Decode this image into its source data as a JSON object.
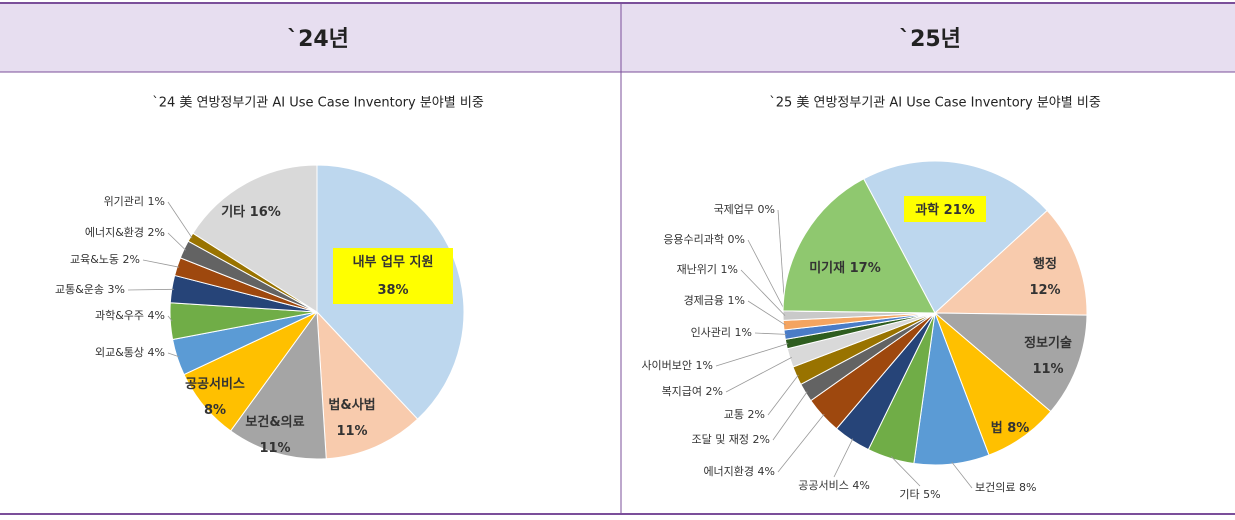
{
  "header": [
    "`24년",
    "`25년"
  ],
  "chart_data": [
    {
      "type": "pie",
      "title": "`24 美 연방정부기관 AI Use Case Inventory 분야별 비중",
      "categories": [
        "내부 업무 지원",
        "법&사법",
        "보건&의료",
        "공공서비스",
        "외교&통상",
        "과학&우주",
        "교통&운송",
        "교육&노동",
        "에너지&환경",
        "위기관리",
        "기타"
      ],
      "values": [
        38,
        11,
        11,
        8,
        4,
        4,
        3,
        2,
        2,
        1,
        16
      ],
      "value_labels": [
        "38%",
        "11%",
        "11%",
        "8%",
        "4%",
        "4%",
        "3%",
        "2%",
        "2%",
        "1%",
        "16%"
      ],
      "colors": [
        "#bdd7ee",
        "#f8cbad",
        "#a5a5a5",
        "#ffc000",
        "#5b9bd5",
        "#70ad47",
        "#264478",
        "#9e480e",
        "#636363",
        "#997300",
        "#d9d9d9"
      ]
    },
    {
      "type": "pie",
      "title": "`25 美 연방정부기관 AI Use Case Inventory 분야별 비중",
      "categories": [
        "과학",
        "행정",
        "정보기술",
        "법",
        "보건의료",
        "기타",
        "공공서비스",
        "에너지환경",
        "조달 및 재정",
        "교통",
        "복지급여",
        "사이버보안",
        "인사관리",
        "경제금융",
        "재난위기",
        "응용수리과학",
        "국제업무",
        "미기재"
      ],
      "values": [
        21,
        12,
        11,
        8,
        8,
        5,
        4,
        4,
        2,
        2,
        2,
        1,
        1,
        1,
        1,
        0,
        0,
        17
      ],
      "value_labels": [
        "21%",
        "12%",
        "11%",
        "8%",
        "8%",
        "5%",
        "4%",
        "4%",
        "2%",
        "2%",
        "2%",
        "1%",
        "1%",
        "1%",
        "1%",
        "0%",
        "0%",
        "17%"
      ],
      "colors": [
        "#bdd7ee",
        "#f8cbad",
        "#a5a5a5",
        "#ffc000",
        "#5b9bd5",
        "#70ad47",
        "#264478",
        "#9e480e",
        "#636363",
        "#997300",
        "#d9d9d9",
        "#2e5d1f",
        "#4a7cc7",
        "#f4a460",
        "#c9c9c9",
        "#7f7f7f",
        "#ffe699",
        "#8fc86f"
      ]
    }
  ]
}
